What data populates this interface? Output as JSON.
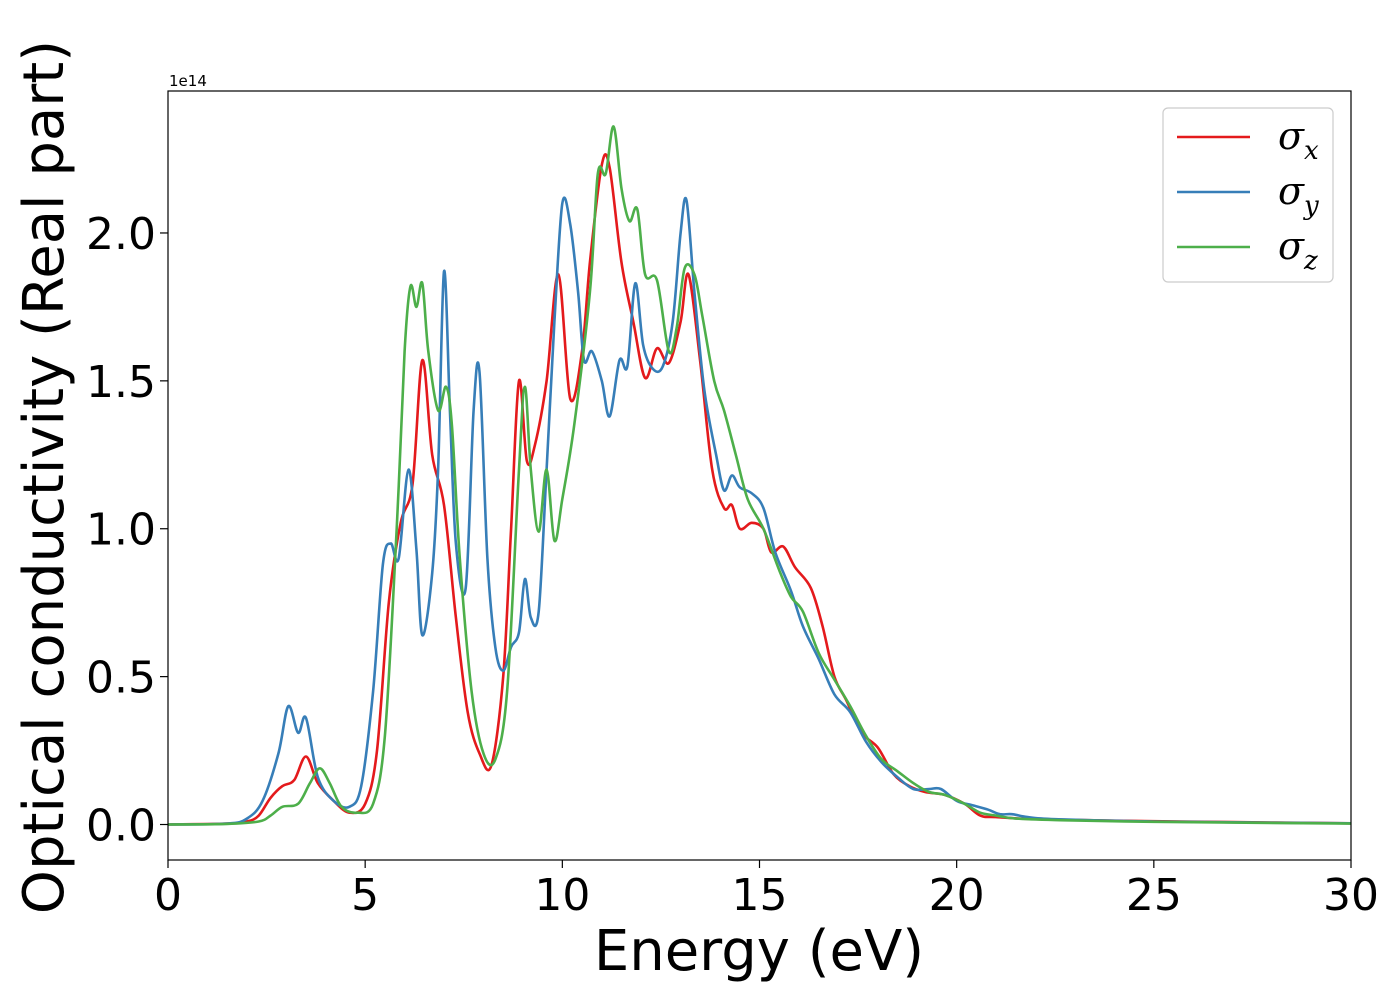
{
  "chart_data": {
    "type": "line",
    "xlabel": "Energy (eV)",
    "ylabel": "Optical conductivity (Real part)",
    "y_offset_label": "1e14",
    "xlim": [
      0,
      30
    ],
    "ylim": [
      -0.12,
      2.48
    ],
    "x_ticks": [
      0,
      5,
      10,
      15,
      20,
      25,
      30
    ],
    "x_tick_labels": [
      "0",
      "5",
      "10",
      "15",
      "20",
      "25",
      "30"
    ],
    "y_ticks": [
      0.0,
      0.5,
      1.0,
      1.5,
      2.0
    ],
    "y_tick_labels": [
      "0.0",
      "0.5",
      "1.0",
      "1.5",
      "2.0"
    ],
    "grid": false,
    "legend_position": "top-right",
    "series": [
      {
        "name": "σx",
        "label_base": "σ",
        "label_sub": "x",
        "color": "#e41a1c",
        "points": [
          [
            0,
            0
          ],
          [
            1.5,
            0.003
          ],
          [
            2.0,
            0.01
          ],
          [
            2.3,
            0.03
          ],
          [
            2.6,
            0.09
          ],
          [
            2.9,
            0.13
          ],
          [
            3.2,
            0.15
          ],
          [
            3.5,
            0.23
          ],
          [
            3.8,
            0.14
          ],
          [
            4.2,
            0.08
          ],
          [
            4.6,
            0.04
          ],
          [
            5.0,
            0.07
          ],
          [
            5.3,
            0.25
          ],
          [
            5.6,
            0.75
          ],
          [
            5.9,
            1.02
          ],
          [
            6.2,
            1.15
          ],
          [
            6.45,
            1.57
          ],
          [
            6.7,
            1.25
          ],
          [
            7.0,
            1.08
          ],
          [
            7.3,
            0.7
          ],
          [
            7.6,
            0.38
          ],
          [
            7.9,
            0.24
          ],
          [
            8.2,
            0.2
          ],
          [
            8.5,
            0.5
          ],
          [
            8.7,
            1.0
          ],
          [
            8.9,
            1.5
          ],
          [
            9.1,
            1.23
          ],
          [
            9.3,
            1.28
          ],
          [
            9.6,
            1.5
          ],
          [
            9.9,
            1.86
          ],
          [
            10.2,
            1.44
          ],
          [
            10.5,
            1.6
          ],
          [
            10.7,
            1.9
          ],
          [
            11.0,
            2.23
          ],
          [
            11.2,
            2.22
          ],
          [
            11.5,
            1.9
          ],
          [
            11.8,
            1.7
          ],
          [
            12.1,
            1.51
          ],
          [
            12.4,
            1.61
          ],
          [
            12.7,
            1.56
          ],
          [
            13.0,
            1.7
          ],
          [
            13.2,
            1.86
          ],
          [
            13.5,
            1.56
          ],
          [
            13.8,
            1.2
          ],
          [
            14.1,
            1.07
          ],
          [
            14.3,
            1.08
          ],
          [
            14.5,
            1.0
          ],
          [
            14.8,
            1.02
          ],
          [
            15.1,
            1.0
          ],
          [
            15.3,
            0.92
          ],
          [
            15.6,
            0.94
          ],
          [
            15.9,
            0.87
          ],
          [
            16.3,
            0.8
          ],
          [
            16.6,
            0.67
          ],
          [
            16.9,
            0.5
          ],
          [
            17.2,
            0.42
          ],
          [
            17.6,
            0.31
          ],
          [
            18.0,
            0.26
          ],
          [
            18.4,
            0.17
          ],
          [
            18.8,
            0.13
          ],
          [
            19.2,
            0.11
          ],
          [
            19.7,
            0.1
          ],
          [
            20.2,
            0.07
          ],
          [
            20.6,
            0.03
          ],
          [
            21.0,
            0.025
          ],
          [
            22.0,
            0.018
          ],
          [
            24.0,
            0.013
          ],
          [
            27.0,
            0.008
          ],
          [
            30.0,
            0.004
          ]
        ]
      },
      {
        "name": "σy",
        "label_base": "σ",
        "label_sub": "y",
        "color": "#377eb8",
        "points": [
          [
            0,
            0
          ],
          [
            1.5,
            0.003
          ],
          [
            2.0,
            0.02
          ],
          [
            2.4,
            0.08
          ],
          [
            2.8,
            0.24
          ],
          [
            3.05,
            0.4
          ],
          [
            3.3,
            0.31
          ],
          [
            3.5,
            0.36
          ],
          [
            3.8,
            0.16
          ],
          [
            4.2,
            0.08
          ],
          [
            4.6,
            0.06
          ],
          [
            4.9,
            0.13
          ],
          [
            5.2,
            0.45
          ],
          [
            5.45,
            0.88
          ],
          [
            5.65,
            0.95
          ],
          [
            5.85,
            0.9
          ],
          [
            6.1,
            1.2
          ],
          [
            6.3,
            0.93
          ],
          [
            6.45,
            0.64
          ],
          [
            6.7,
            0.85
          ],
          [
            6.85,
            1.2
          ],
          [
            7.0,
            1.87
          ],
          [
            7.15,
            1.4
          ],
          [
            7.3,
            0.95
          ],
          [
            7.55,
            0.8
          ],
          [
            7.75,
            1.4
          ],
          [
            7.9,
            1.53
          ],
          [
            8.1,
            0.9
          ],
          [
            8.3,
            0.6
          ],
          [
            8.5,
            0.52
          ],
          [
            8.7,
            0.6
          ],
          [
            8.9,
            0.65
          ],
          [
            9.05,
            0.83
          ],
          [
            9.2,
            0.7
          ],
          [
            9.4,
            0.72
          ],
          [
            9.6,
            1.2
          ],
          [
            9.8,
            1.7
          ],
          [
            10.0,
            2.1
          ],
          [
            10.2,
            2.03
          ],
          [
            10.4,
            1.8
          ],
          [
            10.55,
            1.57
          ],
          [
            10.75,
            1.6
          ],
          [
            11.0,
            1.5
          ],
          [
            11.2,
            1.38
          ],
          [
            11.45,
            1.57
          ],
          [
            11.65,
            1.55
          ],
          [
            11.85,
            1.83
          ],
          [
            12.05,
            1.62
          ],
          [
            12.3,
            1.54
          ],
          [
            12.55,
            1.55
          ],
          [
            12.8,
            1.7
          ],
          [
            13.0,
            2.0
          ],
          [
            13.15,
            2.11
          ],
          [
            13.35,
            1.8
          ],
          [
            13.6,
            1.47
          ],
          [
            13.9,
            1.25
          ],
          [
            14.1,
            1.13
          ],
          [
            14.3,
            1.18
          ],
          [
            14.5,
            1.14
          ],
          [
            14.8,
            1.12
          ],
          [
            15.1,
            1.07
          ],
          [
            15.4,
            0.92
          ],
          [
            15.8,
            0.79
          ],
          [
            16.1,
            0.67
          ],
          [
            16.5,
            0.56
          ],
          [
            16.9,
            0.44
          ],
          [
            17.3,
            0.38
          ],
          [
            17.7,
            0.28
          ],
          [
            18.1,
            0.21
          ],
          [
            18.5,
            0.16
          ],
          [
            18.9,
            0.12
          ],
          [
            19.3,
            0.12
          ],
          [
            19.6,
            0.12
          ],
          [
            20.0,
            0.08
          ],
          [
            20.4,
            0.065
          ],
          [
            20.8,
            0.05
          ],
          [
            21.1,
            0.035
          ],
          [
            21.4,
            0.035
          ],
          [
            21.8,
            0.025
          ],
          [
            22.5,
            0.018
          ],
          [
            25.0,
            0.01
          ],
          [
            30.0,
            0.004
          ]
        ]
      },
      {
        "name": "σz",
        "label_base": "σ",
        "label_sub": "z",
        "color": "#4daf4a",
        "points": [
          [
            0,
            0
          ],
          [
            1.5,
            0.002
          ],
          [
            2.3,
            0.01
          ],
          [
            2.6,
            0.03
          ],
          [
            2.9,
            0.06
          ],
          [
            3.3,
            0.07
          ],
          [
            3.6,
            0.14
          ],
          [
            3.85,
            0.19
          ],
          [
            4.1,
            0.14
          ],
          [
            4.4,
            0.06
          ],
          [
            4.8,
            0.04
          ],
          [
            5.2,
            0.07
          ],
          [
            5.5,
            0.3
          ],
          [
            5.8,
            1.0
          ],
          [
            6.0,
            1.6
          ],
          [
            6.15,
            1.82
          ],
          [
            6.3,
            1.75
          ],
          [
            6.45,
            1.83
          ],
          [
            6.6,
            1.6
          ],
          [
            6.85,
            1.4
          ],
          [
            7.05,
            1.48
          ],
          [
            7.2,
            1.35
          ],
          [
            7.4,
            0.9
          ],
          [
            7.7,
            0.45
          ],
          [
            8.0,
            0.24
          ],
          [
            8.3,
            0.22
          ],
          [
            8.6,
            0.45
          ],
          [
            8.9,
            1.2
          ],
          [
            9.05,
            1.48
          ],
          [
            9.2,
            1.2
          ],
          [
            9.4,
            0.99
          ],
          [
            9.6,
            1.2
          ],
          [
            9.8,
            0.96
          ],
          [
            10.0,
            1.1
          ],
          [
            10.3,
            1.35
          ],
          [
            10.7,
            1.8
          ],
          [
            10.9,
            2.2
          ],
          [
            11.1,
            2.2
          ],
          [
            11.3,
            2.36
          ],
          [
            11.5,
            2.15
          ],
          [
            11.7,
            2.04
          ],
          [
            11.9,
            2.08
          ],
          [
            12.1,
            1.86
          ],
          [
            12.4,
            1.84
          ],
          [
            12.7,
            1.6
          ],
          [
            12.9,
            1.68
          ],
          [
            13.1,
            1.88
          ],
          [
            13.35,
            1.86
          ],
          [
            13.55,
            1.72
          ],
          [
            13.85,
            1.5
          ],
          [
            14.1,
            1.4
          ],
          [
            14.4,
            1.25
          ],
          [
            14.7,
            1.1
          ],
          [
            15.1,
            1.0
          ],
          [
            15.5,
            0.86
          ],
          [
            15.8,
            0.77
          ],
          [
            16.1,
            0.72
          ],
          [
            16.5,
            0.58
          ],
          [
            16.9,
            0.49
          ],
          [
            17.3,
            0.4
          ],
          [
            17.7,
            0.3
          ],
          [
            18.1,
            0.22
          ],
          [
            18.5,
            0.18
          ],
          [
            18.9,
            0.14
          ],
          [
            19.3,
            0.11
          ],
          [
            19.7,
            0.1
          ],
          [
            20.2,
            0.07
          ],
          [
            20.6,
            0.04
          ],
          [
            21.0,
            0.03
          ],
          [
            21.5,
            0.02
          ],
          [
            22.5,
            0.015
          ],
          [
            25.0,
            0.009
          ],
          [
            30.0,
            0.003
          ]
        ]
      }
    ]
  }
}
